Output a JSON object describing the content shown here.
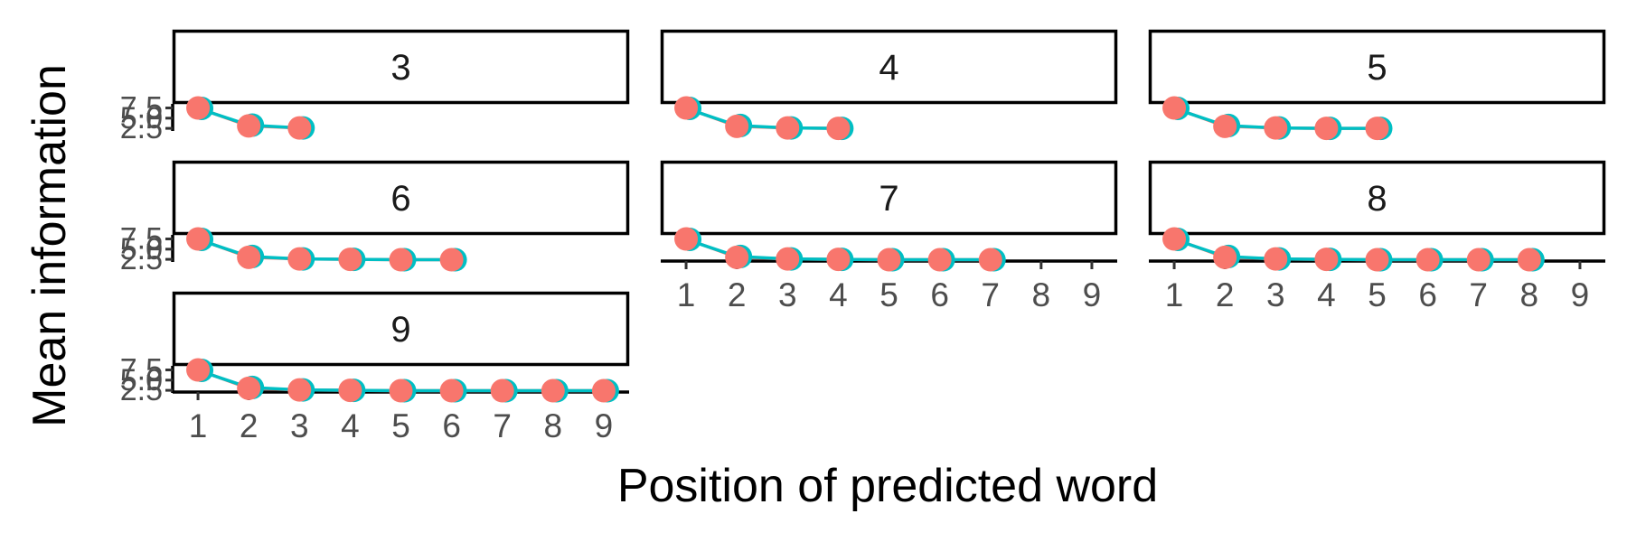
{
  "chart_data": {
    "type": "line",
    "xlabel": "Position of predicted word",
    "ylabel": "Mean information",
    "x_ticks": [
      1,
      2,
      3,
      4,
      5,
      6,
      7,
      8,
      9
    ],
    "y_ticks": [
      2.5,
      5.0,
      7.5
    ],
    "y_tick_labels": [
      "2.5",
      "5.0",
      "7.5"
    ],
    "xlim": [
      0.5,
      9.5
    ],
    "ylim": [
      2.3,
      8.5
    ],
    "colors": {
      "red": "#F8766D",
      "teal": "#00BFC4"
    },
    "panels": [
      {
        "label": "3",
        "red": [
          7.5,
          3.1,
          2.6
        ],
        "teal": [
          7.4,
          3.3,
          2.6
        ]
      },
      {
        "label": "4",
        "red": [
          7.5,
          3.0,
          2.6,
          2.5
        ],
        "teal": [
          7.4,
          3.2,
          2.6,
          2.5
        ]
      },
      {
        "label": "5",
        "red": [
          7.5,
          3.0,
          2.6,
          2.5,
          2.5
        ],
        "teal": [
          7.4,
          3.2,
          2.6,
          2.5,
          2.5
        ]
      },
      {
        "label": "6",
        "red": [
          7.5,
          3.0,
          2.6,
          2.5,
          2.4,
          2.4
        ],
        "teal": [
          7.4,
          3.2,
          2.6,
          2.5,
          2.4,
          2.4
        ]
      },
      {
        "label": "7",
        "red": [
          7.5,
          3.0,
          2.6,
          2.5,
          2.4,
          2.4,
          2.4
        ],
        "teal": [
          7.4,
          3.2,
          2.6,
          2.5,
          2.4,
          2.4,
          2.4
        ]
      },
      {
        "label": "8",
        "red": [
          7.5,
          3.0,
          2.6,
          2.5,
          2.4,
          2.4,
          2.4,
          2.4
        ],
        "teal": [
          7.4,
          3.2,
          2.6,
          2.5,
          2.4,
          2.4,
          2.4,
          2.4
        ]
      },
      {
        "label": "9",
        "red": [
          7.5,
          3.0,
          2.6,
          2.5,
          2.4,
          2.4,
          2.4,
          2.4,
          2.4
        ],
        "teal": [
          7.4,
          3.2,
          2.6,
          2.5,
          2.4,
          2.4,
          2.4,
          2.4,
          2.4
        ]
      }
    ]
  }
}
